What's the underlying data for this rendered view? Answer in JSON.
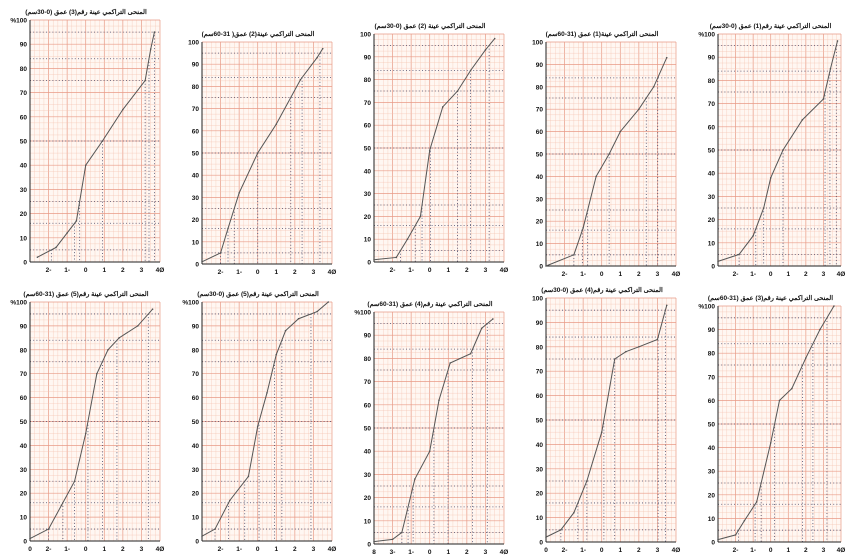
{
  "colors": {
    "grid_minor": "#f3c3b0",
    "grid_major": "#e89a86",
    "curve": "#555555",
    "dots": "#4a4a6a",
    "axis": "#222222"
  },
  "chart_data": [
    {
      "type": "line",
      "title": "المنحى التراكمي عينة رقم(3) عمق (0-30سم)",
      "x": [
        -2.6,
        -1.6,
        -1.0,
        -0.5,
        0,
        0.9,
        2.0,
        3.2,
        3.5,
        3.7
      ],
      "y": [
        2,
        6,
        12,
        17,
        40,
        50,
        63,
        75,
        88,
        95
      ],
      "xticks": [
        "2-",
        "1-",
        "0",
        "1",
        "2",
        "3",
        "4Ø"
      ],
      "yticks": [
        "0",
        "10",
        "20",
        "30",
        "40",
        "50",
        "60",
        "70",
        "80",
        "90",
        "%100"
      ],
      "xlim": [
        -3,
        4
      ],
      "ylim": [
        0,
        100
      ]
    },
    {
      "type": "line",
      "title": "المنحى التراكمي عينة(2) عمق( 31-60سم)",
      "x": [
        -3,
        -2.0,
        -1.6,
        -1.0,
        0,
        1.0,
        2.3,
        3.2,
        3.5
      ],
      "y": [
        1,
        5,
        16,
        32,
        50,
        63,
        83,
        93,
        97
      ],
      "xticks": [
        "2-",
        "1-",
        "0",
        "1",
        "2",
        "3",
        "4Ø"
      ],
      "yticks": [
        "0",
        "10",
        "20",
        "30",
        "40",
        "50",
        "60",
        "70",
        "80",
        "90",
        "100"
      ],
      "xlim": [
        -3,
        4
      ],
      "ylim": [
        0,
        100
      ]
    },
    {
      "type": "line",
      "title": "المنحى التراكمي عينة (2) عمق (0-30سم)",
      "x": [
        -3,
        -1.8,
        -1.2,
        -0.5,
        0,
        0.7,
        1.5,
        2.2,
        3.0,
        3.5
      ],
      "y": [
        1,
        2,
        10,
        20,
        49,
        68,
        75,
        84,
        93,
        98
      ],
      "xticks": [
        "2-",
        "1-",
        "0",
        "1",
        "2",
        "3",
        "4Ø"
      ],
      "yticks": [
        "0",
        "10",
        "20",
        "30",
        "40",
        "50",
        "60",
        "70",
        "80",
        "90",
        "100"
      ],
      "xlim": [
        -3,
        4
      ],
      "ylim": [
        0,
        100
      ]
    },
    {
      "type": "line",
      "title": "المنحى التراكمي عينة(1) عمق (31-60سم)",
      "x": [
        -3,
        -1.5,
        -1.0,
        -0.3,
        0.4,
        1.0,
        2.0,
        2.8,
        3.5
      ],
      "y": [
        0,
        5,
        17,
        40,
        50,
        60,
        70,
        80,
        93
      ],
      "xticks": [
        "2-",
        "1-",
        "0",
        "1",
        "2",
        "3",
        "4Ø"
      ],
      "yticks": [
        "0",
        "10",
        "20",
        "30",
        "40",
        "50",
        "60",
        "70",
        "80",
        "90",
        "100"
      ],
      "xlim": [
        -3,
        4
      ],
      "ylim": [
        0,
        100
      ]
    },
    {
      "type": "line",
      "title": "المنحى التراكمي عينة رقم(1) عمق (0-30سم)",
      "x": [
        -3,
        -1.8,
        -1.0,
        -0.4,
        0,
        0.7,
        1.8,
        3.0,
        3.4,
        3.8
      ],
      "y": [
        2,
        5,
        13,
        25,
        38,
        50,
        63,
        72,
        85,
        97
      ],
      "xticks": [
        "2-",
        "1-",
        "0",
        "1",
        "2",
        "3",
        "4Ø"
      ],
      "yticks": [
        "0",
        "10",
        "20",
        "30",
        "40",
        "50",
        "60",
        "70",
        "80",
        "90",
        "%100"
      ],
      "xlim": [
        -3,
        4
      ],
      "ylim": [
        0,
        100
      ]
    },
    {
      "type": "line",
      "title": "المنحى التراكمي عينة رقم(5) عمق (31-60سم)",
      "x": [
        -3,
        -2.0,
        -1.3,
        -0.6,
        0,
        0.6,
        1.2,
        1.8,
        2.8,
        3.6
      ],
      "y": [
        1,
        5,
        15,
        25,
        45,
        70,
        80,
        85,
        90,
        97
      ],
      "xticks": [
        "0",
        "2-",
        "1-",
        "0",
        "1",
        "2",
        "3",
        "4Ø"
      ],
      "yticks": [
        "0",
        "10",
        "20",
        "30",
        "40",
        "50",
        "60",
        "70",
        "80",
        "90",
        "%100"
      ],
      "xlim": [
        -3,
        4
      ],
      "ylim": [
        0,
        100
      ]
    },
    {
      "type": "line",
      "title": "المنحى التراكمي عينة رقم(5) عمق (0-30سم)",
      "x": [
        -3,
        -2.3,
        -1.5,
        -0.5,
        0,
        0.5,
        1.0,
        1.5,
        2.2,
        3.2,
        3.8
      ],
      "y": [
        2,
        5,
        17,
        27,
        48,
        62,
        78,
        88,
        93,
        96,
        100
      ],
      "xticks": [
        "2-",
        "1-",
        "0",
        "1",
        "2",
        "3",
        "4Ø"
      ],
      "yticks": [
        "0",
        "10",
        "20",
        "30",
        "40",
        "50",
        "60",
        "70",
        "80",
        "90",
        "%100"
      ],
      "xlim": [
        -3,
        4
      ],
      "ylim": [
        0,
        100
      ]
    },
    {
      "type": "line",
      "title": "المنحى التراكمي عينة رقم(4) عمق (31-60سم)",
      "x": [
        -3,
        -2.0,
        -1.5,
        -0.8,
        0,
        0.5,
        1.1,
        2.2,
        2.8,
        3.4
      ],
      "y": [
        1,
        2,
        5,
        28,
        40,
        62,
        78,
        82,
        93,
        97
      ],
      "xticks": [
        "8",
        "3-",
        "1-",
        "0",
        "1",
        "2",
        "3",
        "4Ø"
      ],
      "yticks": [
        "0",
        "10",
        "20",
        "30",
        "40",
        "50",
        "60",
        "70",
        "80",
        "90",
        "%100"
      ],
      "xlim": [
        -3,
        4
      ],
      "ylim": [
        0,
        100
      ]
    },
    {
      "type": "line",
      "title": "المنحى التراكمي عينة رقم(4) عمق (0-30سم)",
      "x": [
        -3,
        -2.2,
        -1.5,
        -0.8,
        0,
        0.7,
        1.3,
        2.0,
        3.0,
        3.5
      ],
      "y": [
        2,
        5,
        12,
        25,
        45,
        75,
        78,
        80,
        83,
        97
      ],
      "xticks": [
        "0",
        "2-",
        "1-",
        "0",
        "1",
        "2",
        "3",
        "4Ø"
      ],
      "yticks": [
        "0",
        "10",
        "20",
        "30",
        "40",
        "50",
        "60",
        "70",
        "80",
        "90",
        "100"
      ],
      "xlim": [
        -3,
        4
      ],
      "ylim": [
        0,
        100
      ]
    },
    {
      "type": "line",
      "title": "المنحى التراكمي عينة رقم(3) عمق (31-60سم)",
      "x": [
        -3,
        -2.0,
        -1.5,
        -0.8,
        0,
        0.5,
        1.2,
        2.0,
        2.8,
        3.6
      ],
      "y": [
        1,
        3,
        9,
        17,
        42,
        60,
        65,
        78,
        90,
        100
      ],
      "xticks": [
        "2-",
        "1-",
        "0",
        "1",
        "2",
        "3",
        "4Ø"
      ],
      "yticks": [
        "0",
        "10",
        "20",
        "30",
        "40",
        "50",
        "60",
        "70",
        "80",
        "90",
        "%100"
      ],
      "xlim": [
        -3,
        4
      ],
      "ylim": [
        0,
        100
      ]
    }
  ]
}
